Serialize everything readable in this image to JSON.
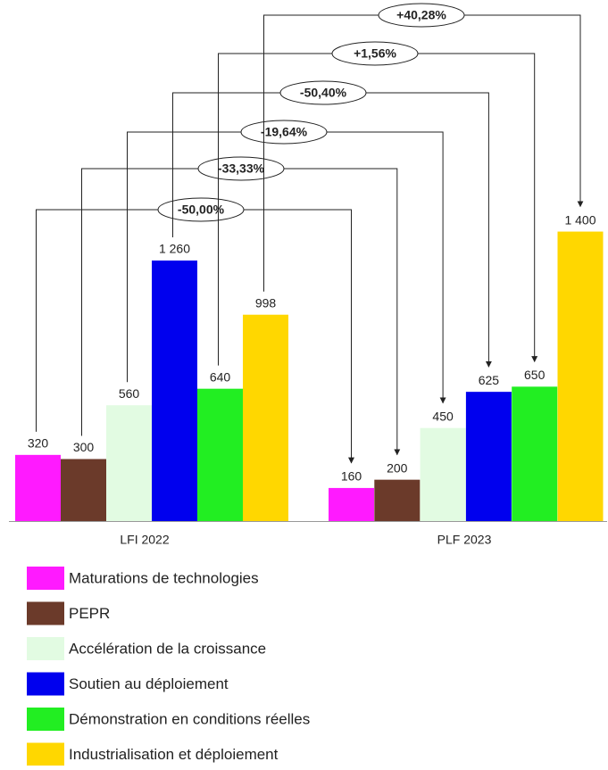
{
  "chart_data": {
    "type": "bar",
    "categories": [
      "LFI 2022",
      "PLF 2023"
    ],
    "series": [
      {
        "name": "Maturations de technologies",
        "color": "#ff1aff",
        "values": [
          320,
          160
        ]
      },
      {
        "name": "PEPR",
        "color": "#6b3a2a",
        "values": [
          300,
          200
        ]
      },
      {
        "name": "Accélération de la croissance",
        "color": "#e2fbe2",
        "values": [
          560,
          450
        ]
      },
      {
        "name": "Soutien au déploiement",
        "color": "#0000ee",
        "values": [
          1260,
          625
        ],
        "value_labels": [
          "1 260",
          "625"
        ]
      },
      {
        "name": "Démonstration en conditions réelles",
        "color": "#22ee22",
        "values": [
          640,
          650
        ]
      },
      {
        "name": "Industrialisation et déploiement",
        "color": "#ffd700",
        "values": [
          998,
          1400
        ],
        "value_labels": [
          "998",
          "1 400"
        ]
      }
    ],
    "annotations": [
      "-50,00%",
      "-33,33%",
      "-19,64%",
      "-50,40%",
      "+1,56%",
      "+40,28%"
    ]
  }
}
